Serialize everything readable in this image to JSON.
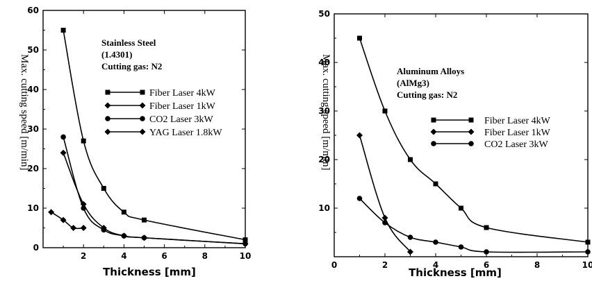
{
  "chart_data": [
    {
      "type": "line",
      "annotation": [
        "Stainless Steel",
        "(1.4301)",
        "Cutting gas: N2"
      ],
      "ylabel": "Max. cutting speed [m/min]",
      "xlabel": "Thickness [mm]",
      "xlim": [
        0,
        10
      ],
      "ylim": [
        0,
        60
      ],
      "xticks": [
        2,
        4,
        6,
        8,
        10
      ],
      "yticks": [
        0,
        10,
        20,
        30,
        40,
        50,
        60
      ],
      "series": [
        {
          "name": "Fiber Laser 4kW",
          "marker": "square",
          "x": [
            1,
            2,
            3,
            4,
            5,
            10
          ],
          "y": [
            55,
            27,
            15,
            9,
            7,
            2
          ]
        },
        {
          "name": "Fiber Laser 1kW",
          "marker": "diamond",
          "x": [
            1,
            2,
            3,
            4,
            5,
            10
          ],
          "y": [
            24,
            11,
            5,
            3,
            2.5,
            1
          ]
        },
        {
          "name": "CO2 Laser 3kW",
          "marker": "circle",
          "x": [
            1,
            2,
            3,
            4,
            5,
            10
          ],
          "y": [
            28,
            10,
            4.5,
            3,
            2.5,
            1
          ]
        },
        {
          "name": "YAG Laser 1.8kW",
          "marker": "diamond",
          "x": [
            0.4,
            1,
            1.5,
            2
          ],
          "y": [
            9,
            7,
            5,
            5
          ]
        }
      ]
    },
    {
      "type": "line",
      "annotation": [
        "Aluminum Alloys",
        "(AlMg3)",
        "Cutting gas: N2"
      ],
      "ylabel": "Max. cutting speed [m/min]",
      "xlabel": "Thickness [mm]",
      "xlim": [
        0,
        10
      ],
      "ylim": [
        0,
        50
      ],
      "xticks": [
        0,
        2,
        4,
        6,
        8,
        10
      ],
      "yticks": [
        10,
        20,
        30,
        40,
        50
      ],
      "series": [
        {
          "name": "Fiber Laser 4kW",
          "marker": "square",
          "x": [
            1,
            2,
            3,
            4,
            5,
            6,
            10
          ],
          "y": [
            45,
            30,
            20,
            15,
            10,
            6,
            3
          ]
        },
        {
          "name": "Fiber Laser 1kW",
          "marker": "diamond",
          "x": [
            1,
            2,
            3
          ],
          "y": [
            25,
            8,
            1
          ]
        },
        {
          "name": "CO2 Laser 3kW",
          "marker": "circle",
          "x": [
            1,
            2,
            3,
            4,
            5,
            6,
            10
          ],
          "y": [
            12,
            7,
            4,
            3,
            2,
            1,
            1
          ]
        }
      ]
    }
  ]
}
